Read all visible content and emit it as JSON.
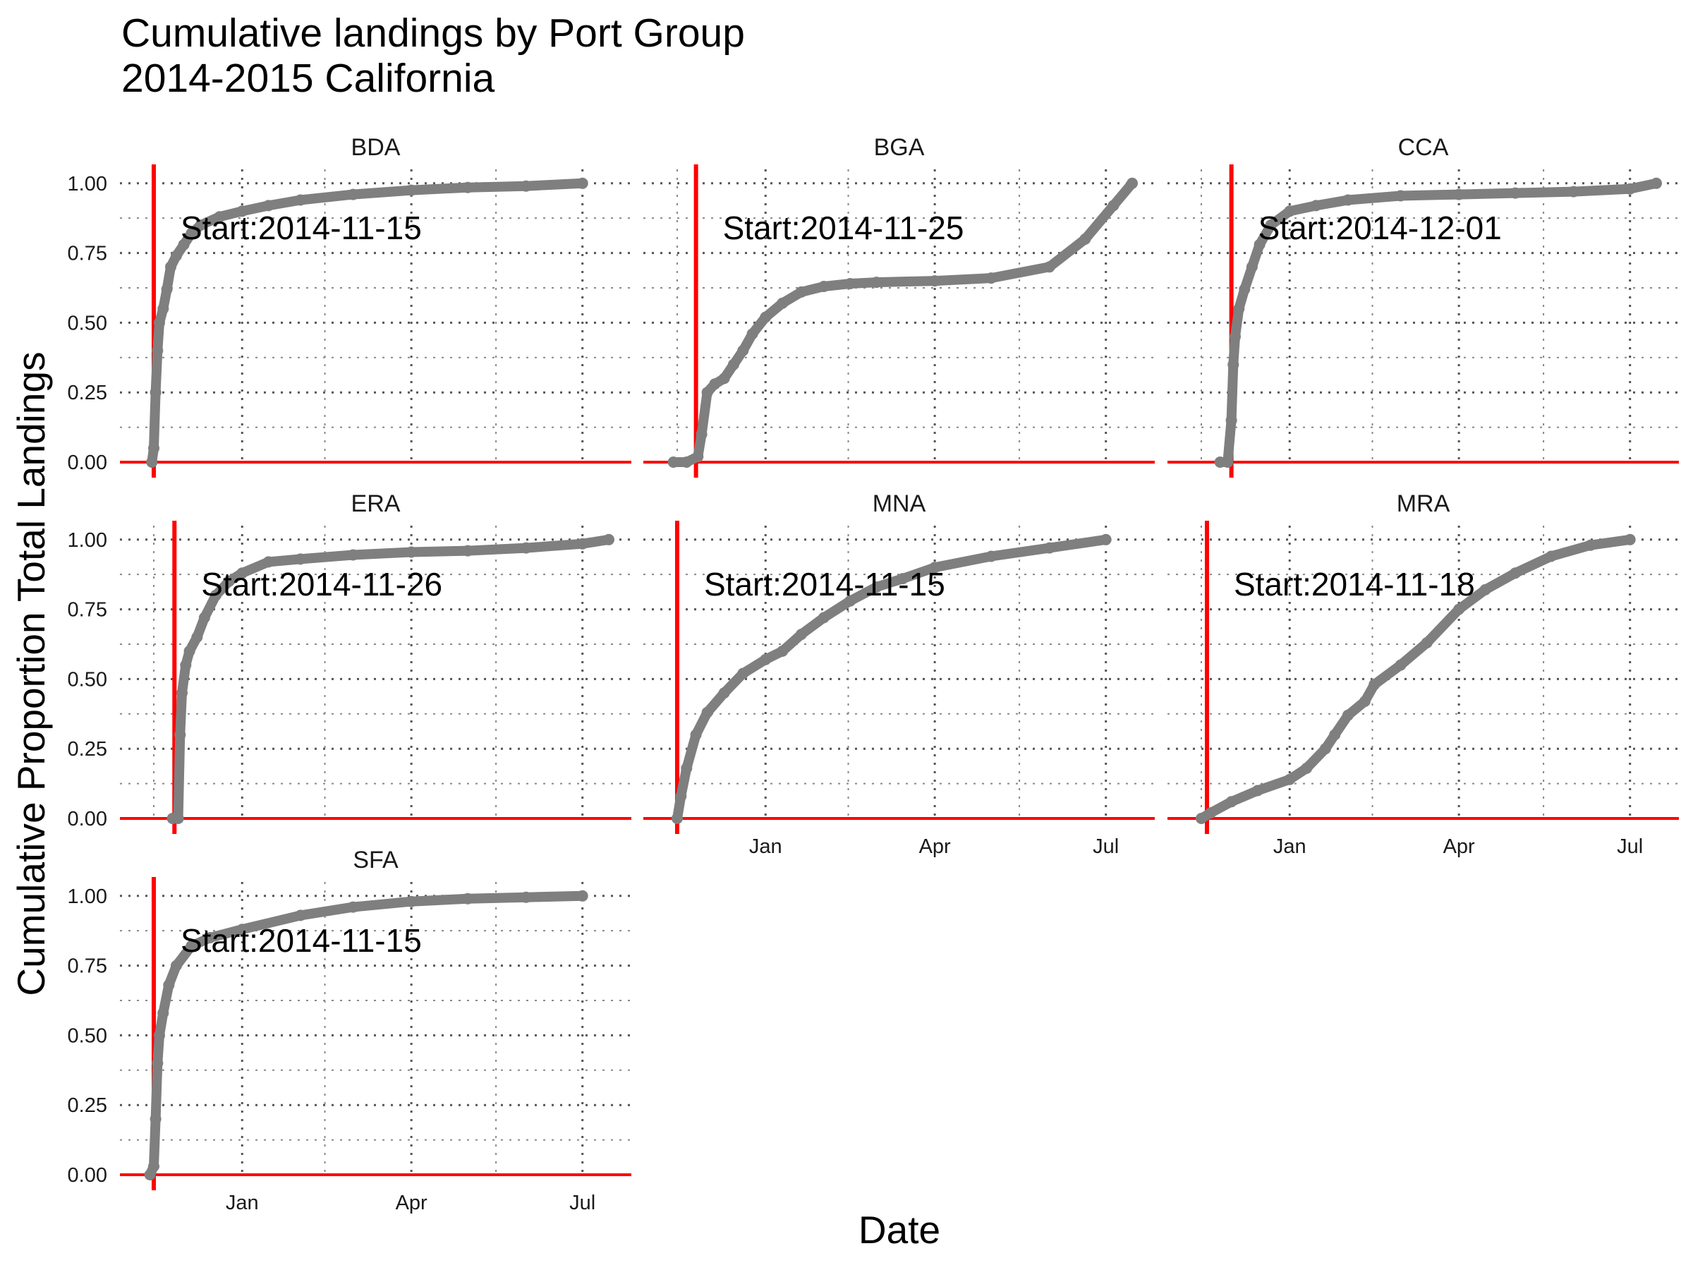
{
  "chart_data": {
    "type": "line",
    "title": "Cumulative landings by Port Group",
    "subtitle": "2014-2015 California",
    "xlabel": "Date",
    "ylabel": "Cumulative Proportion Total Landings",
    "xlim": [
      "2014-10-28",
      "2015-07-27"
    ],
    "ylim": [
      0,
      1.05
    ],
    "y_ticks": [
      "0.00",
      "0.25",
      "0.50",
      "0.75",
      "1.00"
    ],
    "x_ticks": [
      {
        "date": "2015-01-01",
        "label": "Jan"
      },
      {
        "date": "2015-04-01",
        "label": "Apr"
      },
      {
        "date": "2015-07-01",
        "label": "Jul"
      }
    ],
    "grid": "dotted",
    "reference_hline": 0,
    "colors": {
      "series": "#7f7f7f",
      "reference": "#ff0000"
    },
    "panels": [
      {
        "name": "BDA",
        "start_date": "2014-11-15",
        "annotation": "Start:2014-11-15",
        "points": [
          [
            "2014-11-14",
            0.0
          ],
          [
            "2014-11-15",
            0.05
          ],
          [
            "2014-11-16",
            0.25
          ],
          [
            "2014-11-17",
            0.4
          ],
          [
            "2014-11-18",
            0.5
          ],
          [
            "2014-11-20",
            0.55
          ],
          [
            "2014-11-22",
            0.62
          ],
          [
            "2014-11-24",
            0.7
          ],
          [
            "2014-11-27",
            0.74
          ],
          [
            "2014-12-01",
            0.78
          ],
          [
            "2014-12-05",
            0.82
          ],
          [
            "2014-12-10",
            0.85
          ],
          [
            "2014-12-20",
            0.88
          ],
          [
            "2015-01-01",
            0.9
          ],
          [
            "2015-01-15",
            0.92
          ],
          [
            "2015-02-01",
            0.94
          ],
          [
            "2015-03-01",
            0.96
          ],
          [
            "2015-04-01",
            0.975
          ],
          [
            "2015-05-01",
            0.985
          ],
          [
            "2015-06-01",
            0.99
          ],
          [
            "2015-07-01",
            1.0
          ]
        ]
      },
      {
        "name": "BGA",
        "start_date": "2014-11-25",
        "annotation": "Start:2014-11-25",
        "points": [
          [
            "2014-11-13",
            0.0
          ],
          [
            "2014-11-20",
            0.0
          ],
          [
            "2014-11-26",
            0.02
          ],
          [
            "2014-11-28",
            0.1
          ],
          [
            "2014-12-01",
            0.25
          ],
          [
            "2014-12-05",
            0.28
          ],
          [
            "2014-12-10",
            0.3
          ],
          [
            "2014-12-15",
            0.35
          ],
          [
            "2014-12-20",
            0.4
          ],
          [
            "2014-12-25",
            0.46
          ],
          [
            "2015-01-01",
            0.52
          ],
          [
            "2015-01-10",
            0.57
          ],
          [
            "2015-01-20",
            0.61
          ],
          [
            "2015-02-01",
            0.63
          ],
          [
            "2015-02-15",
            0.64
          ],
          [
            "2015-03-01",
            0.645
          ],
          [
            "2015-04-01",
            0.65
          ],
          [
            "2015-05-01",
            0.66
          ],
          [
            "2015-06-01",
            0.7
          ],
          [
            "2015-06-20",
            0.8
          ],
          [
            "2015-07-05",
            0.92
          ],
          [
            "2015-07-15",
            1.0
          ]
        ]
      },
      {
        "name": "CCA",
        "start_date": "2014-12-01",
        "annotation": "Start:2014-12-01",
        "points": [
          [
            "2014-11-25",
            0.0
          ],
          [
            "2014-11-29",
            0.0
          ],
          [
            "2014-12-01",
            0.15
          ],
          [
            "2014-12-02",
            0.35
          ],
          [
            "2014-12-03",
            0.45
          ],
          [
            "2014-12-05",
            0.55
          ],
          [
            "2014-12-08",
            0.62
          ],
          [
            "2014-12-12",
            0.7
          ],
          [
            "2014-12-16",
            0.78
          ],
          [
            "2014-12-22",
            0.85
          ],
          [
            "2015-01-01",
            0.9
          ],
          [
            "2015-01-15",
            0.92
          ],
          [
            "2015-02-01",
            0.94
          ],
          [
            "2015-03-01",
            0.955
          ],
          [
            "2015-04-01",
            0.96
          ],
          [
            "2015-05-01",
            0.965
          ],
          [
            "2015-06-01",
            0.97
          ],
          [
            "2015-07-01",
            0.98
          ],
          [
            "2015-07-15",
            1.0
          ]
        ]
      },
      {
        "name": "ERA",
        "start_date": "2014-11-26",
        "annotation": "Start:2014-11-26",
        "points": [
          [
            "2014-11-25",
            0.0
          ],
          [
            "2014-11-28",
            0.0
          ],
          [
            "2014-11-29",
            0.3
          ],
          [
            "2014-11-30",
            0.45
          ],
          [
            "2014-12-02",
            0.55
          ],
          [
            "2014-12-04",
            0.6
          ],
          [
            "2014-12-08",
            0.65
          ],
          [
            "2014-12-12",
            0.72
          ],
          [
            "2014-12-18",
            0.8
          ],
          [
            "2014-12-25",
            0.85
          ],
          [
            "2015-01-01",
            0.88
          ],
          [
            "2015-01-15",
            0.92
          ],
          [
            "2015-02-01",
            0.93
          ],
          [
            "2015-03-01",
            0.945
          ],
          [
            "2015-04-01",
            0.955
          ],
          [
            "2015-05-01",
            0.96
          ],
          [
            "2015-06-01",
            0.97
          ],
          [
            "2015-07-01",
            0.985
          ],
          [
            "2015-07-15",
            1.0
          ]
        ]
      },
      {
        "name": "MNA",
        "start_date": "2014-11-15",
        "annotation": "Start:2014-11-15",
        "points": [
          [
            "2014-11-15",
            0.0
          ],
          [
            "2014-11-17",
            0.08
          ],
          [
            "2014-11-20",
            0.18
          ],
          [
            "2014-11-25",
            0.3
          ],
          [
            "2014-12-01",
            0.38
          ],
          [
            "2014-12-10",
            0.45
          ],
          [
            "2014-12-20",
            0.52
          ],
          [
            "2015-01-01",
            0.57
          ],
          [
            "2015-01-10",
            0.6
          ],
          [
            "2015-01-20",
            0.66
          ],
          [
            "2015-02-01",
            0.72
          ],
          [
            "2015-02-15",
            0.78
          ],
          [
            "2015-03-01",
            0.83
          ],
          [
            "2015-03-15",
            0.86
          ],
          [
            "2015-04-01",
            0.9
          ],
          [
            "2015-05-01",
            0.94
          ],
          [
            "2015-06-01",
            0.97
          ],
          [
            "2015-07-01",
            1.0
          ]
        ]
      },
      {
        "name": "MRA",
        "start_date": "2014-11-18",
        "annotation": "Start:2014-11-18",
        "points": [
          [
            "2014-11-15",
            0.0
          ],
          [
            "2014-11-20",
            0.02
          ],
          [
            "2014-12-01",
            0.06
          ],
          [
            "2014-12-15",
            0.1
          ],
          [
            "2015-01-01",
            0.14
          ],
          [
            "2015-01-10",
            0.18
          ],
          [
            "2015-01-20",
            0.25
          ],
          [
            "2015-01-25",
            0.3
          ],
          [
            "2015-02-01",
            0.37
          ],
          [
            "2015-02-10",
            0.42
          ],
          [
            "2015-02-15",
            0.48
          ],
          [
            "2015-03-01",
            0.55
          ],
          [
            "2015-03-15",
            0.63
          ],
          [
            "2015-04-01",
            0.75
          ],
          [
            "2015-04-15",
            0.82
          ],
          [
            "2015-05-01",
            0.88
          ],
          [
            "2015-05-20",
            0.94
          ],
          [
            "2015-06-10",
            0.98
          ],
          [
            "2015-07-01",
            1.0
          ]
        ]
      },
      {
        "name": "SFA",
        "start_date": "2014-11-15",
        "annotation": "Start:2014-11-15",
        "points": [
          [
            "2014-11-13",
            0.0
          ],
          [
            "2014-11-15",
            0.03
          ],
          [
            "2014-11-16",
            0.2
          ],
          [
            "2014-11-17",
            0.4
          ],
          [
            "2014-11-18",
            0.5
          ],
          [
            "2014-11-20",
            0.58
          ],
          [
            "2014-11-23",
            0.68
          ],
          [
            "2014-11-27",
            0.75
          ],
          [
            "2014-12-05",
            0.82
          ],
          [
            "2014-12-15",
            0.85
          ],
          [
            "2015-01-01",
            0.88
          ],
          [
            "2015-02-01",
            0.93
          ],
          [
            "2015-03-01",
            0.96
          ],
          [
            "2015-04-01",
            0.98
          ],
          [
            "2015-05-01",
            0.99
          ],
          [
            "2015-06-01",
            0.995
          ],
          [
            "2015-07-01",
            1.0
          ]
        ]
      }
    ]
  }
}
